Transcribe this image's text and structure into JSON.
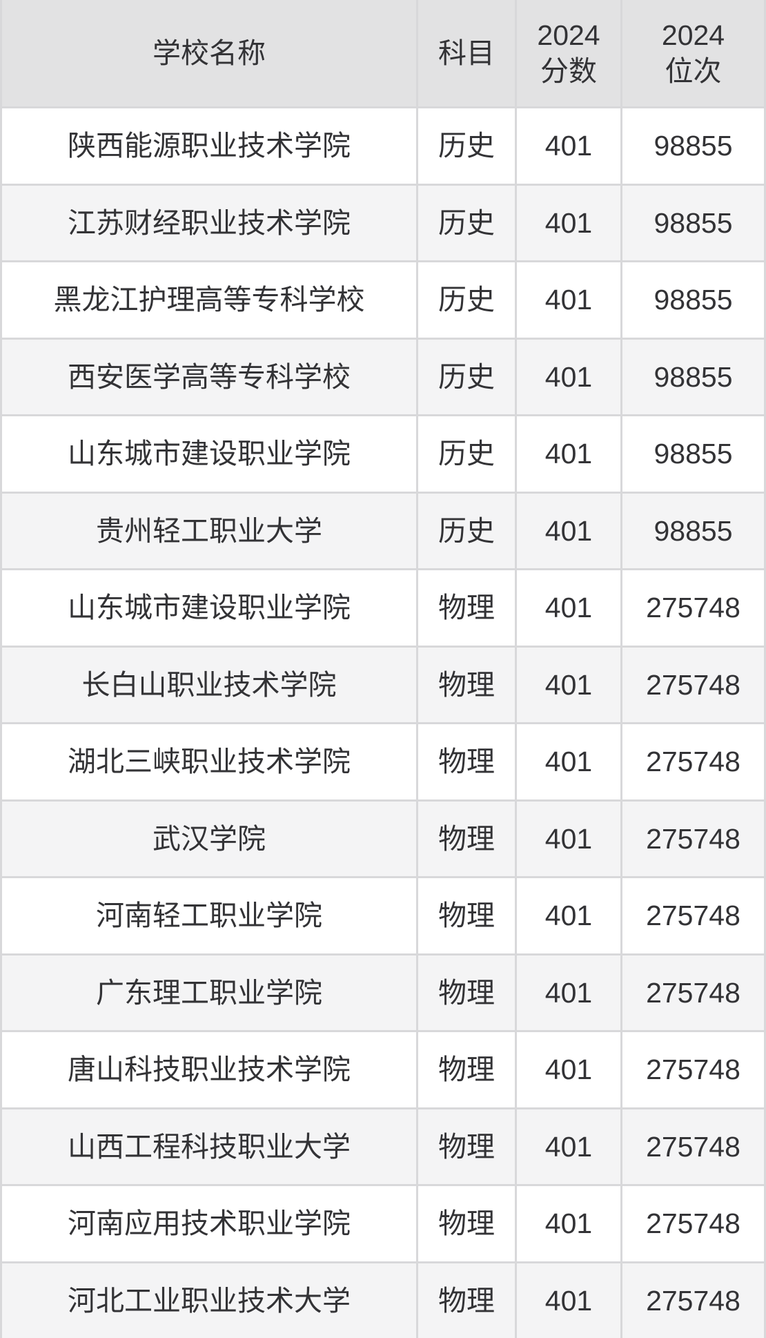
{
  "table": {
    "headers": {
      "school": "学校名称",
      "subject": "科目",
      "score": "2024\n分数",
      "rank": "2024\n位次"
    },
    "rows": [
      {
        "school": "陕西能源职业技术学院",
        "subject": "历史",
        "score": "401",
        "rank": "98855"
      },
      {
        "school": "江苏财经职业技术学院",
        "subject": "历史",
        "score": "401",
        "rank": "98855"
      },
      {
        "school": "黑龙江护理高等专科学校",
        "subject": "历史",
        "score": "401",
        "rank": "98855"
      },
      {
        "school": "西安医学高等专科学校",
        "subject": "历史",
        "score": "401",
        "rank": "98855"
      },
      {
        "school": "山东城市建设职业学院",
        "subject": "历史",
        "score": "401",
        "rank": "98855"
      },
      {
        "school": "贵州轻工职业大学",
        "subject": "历史",
        "score": "401",
        "rank": "98855"
      },
      {
        "school": "山东城市建设职业学院",
        "subject": "物理",
        "score": "401",
        "rank": "275748"
      },
      {
        "school": "长白山职业技术学院",
        "subject": "物理",
        "score": "401",
        "rank": "275748"
      },
      {
        "school": "湖北三峡职业技术学院",
        "subject": "物理",
        "score": "401",
        "rank": "275748"
      },
      {
        "school": "武汉学院",
        "subject": "物理",
        "score": "401",
        "rank": "275748"
      },
      {
        "school": "河南轻工职业学院",
        "subject": "物理",
        "score": "401",
        "rank": "275748"
      },
      {
        "school": "广东理工职业学院",
        "subject": "物理",
        "score": "401",
        "rank": "275748"
      },
      {
        "school": "唐山科技职业技术学院",
        "subject": "物理",
        "score": "401",
        "rank": "275748"
      },
      {
        "school": "山西工程科技职业大学",
        "subject": "物理",
        "score": "401",
        "rank": "275748"
      },
      {
        "school": "河南应用技术职业学院",
        "subject": "物理",
        "score": "401",
        "rank": "275748"
      },
      {
        "school": "河北工业职业技术大学",
        "subject": "物理",
        "score": "401",
        "rank": "275748"
      }
    ]
  },
  "colors": {
    "header_bg": "#e2e2e3",
    "row_bg": "#ffffff",
    "row_alt_bg": "#f4f4f5",
    "divider": "#d8d8da",
    "text": "#333336"
  },
  "chart_data": {
    "type": "table",
    "columns": [
      "学校名称",
      "科目",
      "2024分数",
      "2024位次"
    ],
    "rows": [
      [
        "陕西能源职业技术学院",
        "历史",
        401,
        98855
      ],
      [
        "江苏财经职业技术学院",
        "历史",
        401,
        98855
      ],
      [
        "黑龙江护理高等专科学校",
        "历史",
        401,
        98855
      ],
      [
        "西安医学高等专科学校",
        "历史",
        401,
        98855
      ],
      [
        "山东城市建设职业学院",
        "历史",
        401,
        98855
      ],
      [
        "贵州轻工职业大学",
        "历史",
        401,
        98855
      ],
      [
        "山东城市建设职业学院",
        "物理",
        401,
        275748
      ],
      [
        "长白山职业技术学院",
        "物理",
        401,
        275748
      ],
      [
        "湖北三峡职业技术学院",
        "物理",
        401,
        275748
      ],
      [
        "武汉学院",
        "物理",
        401,
        275748
      ],
      [
        "河南轻工职业学院",
        "物理",
        401,
        275748
      ],
      [
        "广东理工职业学院",
        "物理",
        401,
        275748
      ],
      [
        "唐山科技职业技术学院",
        "物理",
        401,
        275748
      ],
      [
        "山西工程科技职业大学",
        "物理",
        401,
        275748
      ],
      [
        "河南应用技术职业学院",
        "物理",
        401,
        275748
      ],
      [
        "河北工业职业技术大学",
        "物理",
        401,
        275748
      ]
    ],
    "layout": {
      "header_row": true,
      "zebra_striping": true,
      "all_scores_equal": 401,
      "rank_by_subject": {
        "历史": 98855,
        "物理": 275748
      }
    }
  }
}
